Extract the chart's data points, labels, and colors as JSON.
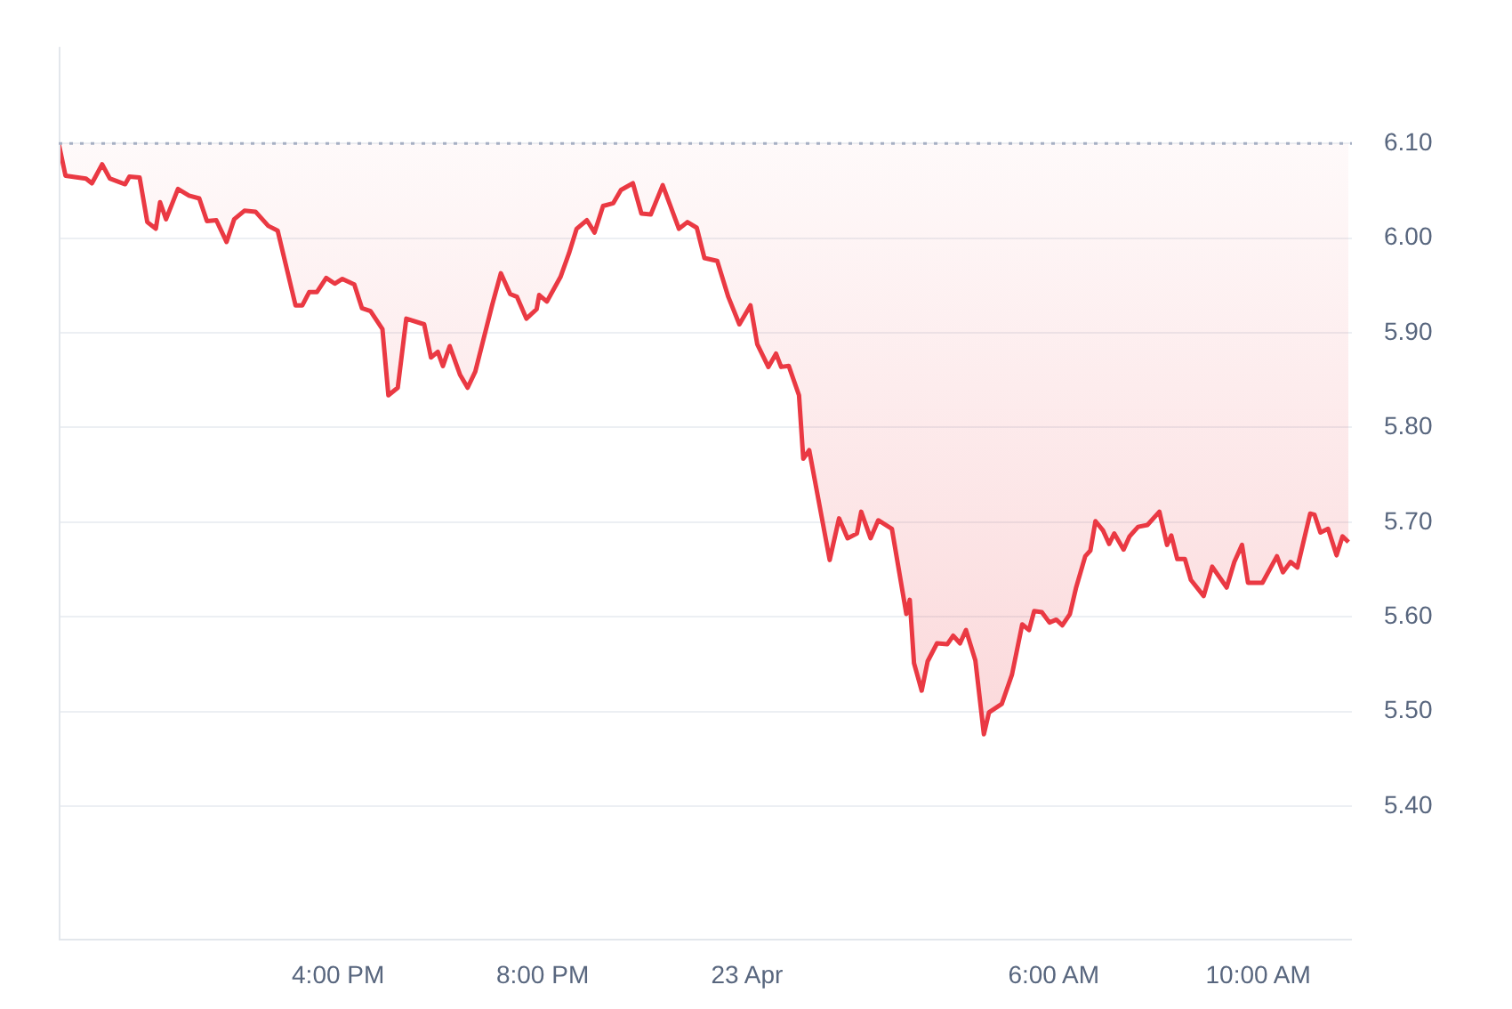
{
  "chart_data": {
    "type": "line",
    "xlim": [
      "--04-22T10:32",
      "--04-23T11:50"
    ],
    "ylim": [
      5.259,
      6.202
    ],
    "grid": "y",
    "legend": false,
    "marker": "none",
    "line_style": "solid",
    "xticks": [
      {
        "value": "--04-22T16:00",
        "label": "4:00 PM"
      },
      {
        "value": "--04-22T20:00",
        "label": "8:00 PM"
      },
      {
        "value": "--04-23T00:00",
        "label": "23 Apr"
      },
      {
        "value": "--04-23T06:00",
        "label": "6:00 AM"
      },
      {
        "value": "--04-23T10:00",
        "label": "10:00 AM"
      }
    ],
    "yticks": [
      {
        "value": 5.4,
        "label": "5.40"
      },
      {
        "value": 5.5,
        "label": "5.50"
      },
      {
        "value": 5.6,
        "label": "5.60"
      },
      {
        "value": 5.7,
        "label": "5.70"
      },
      {
        "value": 5.8,
        "label": "5.80"
      },
      {
        "value": 5.9,
        "label": "5.90"
      },
      {
        "value": 6.0,
        "label": "6.00"
      },
      {
        "value": 6.1,
        "label": "6.10"
      }
    ],
    "ref_lines": [
      {
        "axis": "y",
        "value": 6.1,
        "color": "#a6b0c3",
        "line_style": "dotted"
      }
    ],
    "series": [
      {
        "color": "#ea3943",
        "x": [
          "--04-22T10:32",
          "--04-22T10:40",
          "--04-22T11:04",
          "--04-22T11:11",
          "--04-22T11:23",
          "--04-22T11:32",
          "--04-22T11:50",
          "--04-22T11:55",
          "--04-22T12:07",
          "--04-22T12:16",
          "--04-22T12:26",
          "--04-22T12:31",
          "--04-22T12:38",
          "--04-22T12:52",
          "--04-22T13:05",
          "--04-22T13:17",
          "--04-22T13:26",
          "--04-22T13:37",
          "--04-22T13:49",
          "--04-22T13:58",
          "--04-22T14:10",
          "--04-22T14:23",
          "--04-22T14:38",
          "--04-22T14:49",
          "--04-22T15:10",
          "--04-22T15:18",
          "--04-22T15:26",
          "--04-22T15:35",
          "--04-22T15:46",
          "--04-22T15:56",
          "--04-22T16:05",
          "--04-22T16:19",
          "--04-22T16:28",
          "--04-22T16:38",
          "--04-22T16:52",
          "--04-22T16:59",
          "--04-22T17:10",
          "--04-22T17:20",
          "--04-22T17:41",
          "--04-22T17:49",
          "--04-22T17:57",
          "--04-22T18:03",
          "--04-22T18:11",
          "--04-22T18:23",
          "--04-22T18:32",
          "--04-22T18:41",
          "--04-22T19:01",
          "--04-22T19:11",
          "--04-22T19:22",
          "--04-22T19:30",
          "--04-22T19:41",
          "--04-22T19:53",
          "--04-22T19:56",
          "--04-22T20:05",
          "--04-22T20:21",
          "--04-22T20:31",
          "--04-22T20:40",
          "--04-22T20:52",
          "--04-22T21:01",
          "--04-22T21:11",
          "--04-22T21:23",
          "--04-22T21:32",
          "--04-22T21:46",
          "--04-22T21:56",
          "--04-22T22:07",
          "--04-22T22:21",
          "--04-22T22:40",
          "--04-22T22:50",
          "--04-22T23:01",
          "--04-22T23:10",
          "--04-22T23:25",
          "--04-22T23:38",
          "--04-22T23:51",
          "--04-23T00:04",
          "--04-23T00:12",
          "--04-23T00:25",
          "--04-23T00:34",
          "--04-23T00:40",
          "--04-23T00:49",
          "--04-23T01:01",
          "--04-23T01:06",
          "--04-23T01:13",
          "--04-23T01:37",
          "--04-23T01:48",
          "--04-23T01:58",
          "--04-23T02:09",
          "--04-23T02:14",
          "--04-23T02:25",
          "--04-23T02:34",
          "--04-23T02:50",
          "--04-23T03:07",
          "--04-23T03:11",
          "--04-23T03:16",
          "--04-23T03:25",
          "--04-23T03:32",
          "--04-23T03:43",
          "--04-23T03:55",
          "--04-23T04:02",
          "--04-23T04:10",
          "--04-23T04:17",
          "--04-23T04:28",
          "--04-23T04:38",
          "--04-23T04:44",
          "--04-23T04:59",
          "--04-23T05:11",
          "--04-23T05:23",
          "--04-23T05:31",
          "--04-23T05:37",
          "--04-23T05:46",
          "--04-23T05:55",
          "--04-23T06:03",
          "--04-23T06:10",
          "--04-23T06:19",
          "--04-23T06:26",
          "--04-23T06:37",
          "--04-23T06:43",
          "--04-23T06:49",
          "--04-23T06:58",
          "--04-23T07:05",
          "--04-23T07:11",
          "--04-23T07:22",
          "--04-23T07:29",
          "--04-23T07:39",
          "--04-23T07:50",
          "--04-23T08:04",
          "--04-23T08:13",
          "--04-23T08:18",
          "--04-23T08:25",
          "--04-23T08:34",
          "--04-23T08:41",
          "--04-23T08:56",
          "--04-23T09:06",
          "--04-23T09:23",
          "--04-23T09:32",
          "--04-23T09:41",
          "--04-23T09:48",
          "--04-23T10:05",
          "--04-23T10:22",
          "--04-23T10:29",
          "--04-23T10:38",
          "--04-23T10:46",
          "--04-23T11:01",
          "--04-23T11:06",
          "--04-23T11:13",
          "--04-23T11:22",
          "--04-23T11:32",
          "--04-23T11:39",
          "--04-23T11:46"
        ],
        "values": [
          6.1,
          6.066,
          6.063,
          6.058,
          6.078,
          6.063,
          6.057,
          6.065,
          6.064,
          6.017,
          6.01,
          6.038,
          6.02,
          6.052,
          6.045,
          6.042,
          6.018,
          6.019,
          5.996,
          6.02,
          6.029,
          6.028,
          6.013,
          6.008,
          5.929,
          5.929,
          5.943,
          5.943,
          5.958,
          5.952,
          5.957,
          5.951,
          5.926,
          5.923,
          5.904,
          5.834,
          5.842,
          5.915,
          5.909,
          5.874,
          5.88,
          5.865,
          5.886,
          5.856,
          5.842,
          5.859,
          5.93,
          5.963,
          5.941,
          5.938,
          5.915,
          5.925,
          5.94,
          5.933,
          5.959,
          5.984,
          6.01,
          6.019,
          6.006,
          6.034,
          6.037,
          6.051,
          6.058,
          6.026,
          6.025,
          6.056,
          6.01,
          6.017,
          6.011,
          5.979,
          5.976,
          5.938,
          5.909,
          5.929,
          5.888,
          5.864,
          5.878,
          5.864,
          5.865,
          5.834,
          5.767,
          5.776,
          5.66,
          5.704,
          5.683,
          5.688,
          5.711,
          5.683,
          5.702,
          5.693,
          5.603,
          5.618,
          5.551,
          5.522,
          5.553,
          5.572,
          5.571,
          5.58,
          5.572,
          5.586,
          5.554,
          5.476,
          5.499,
          5.508,
          5.539,
          5.592,
          5.586,
          5.606,
          5.605,
          5.594,
          5.597,
          5.591,
          5.603,
          5.63,
          5.664,
          5.67,
          5.701,
          5.691,
          5.677,
          5.688,
          5.671,
          5.685,
          5.695,
          5.697,
          5.711,
          5.676,
          5.686,
          5.661,
          5.661,
          5.639,
          5.622,
          5.653,
          5.631,
          5.658,
          5.676,
          5.636,
          5.636,
          5.664,
          5.647,
          5.658,
          5.652,
          5.709,
          5.708,
          5.689,
          5.693,
          5.665,
          5.685,
          5.679
        ]
      }
    ]
  }
}
